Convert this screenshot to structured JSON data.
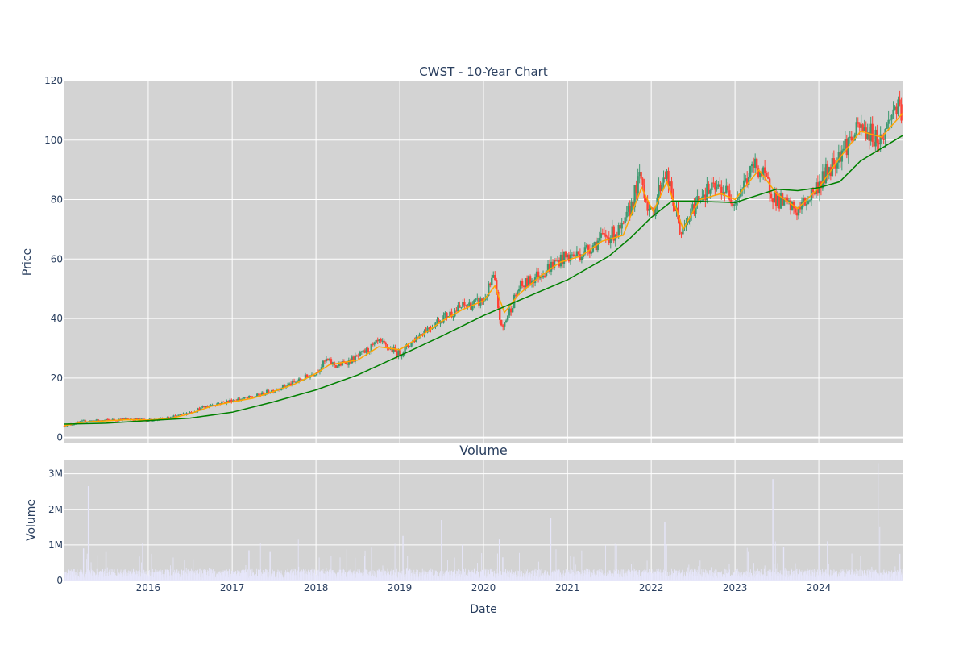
{
  "colors": {
    "plot_bg": "#d3d3d3",
    "paper_bg": "#ffffff",
    "grid": "#ffffff",
    "text": "#2a3f5f",
    "candle_up": "#3d9970",
    "candle_down": "#ff4136",
    "ma_short": "#ffa500",
    "ma_long": "#008000",
    "volume": "#e6e6fa"
  },
  "chart_data": [
    {
      "type": "candlestick",
      "title": "CWST - 10-Year Chart",
      "xlabel": "",
      "ylabel": "Price",
      "xlim": [
        "2015-01-01",
        "2024-12-31"
      ],
      "ylim": [
        -2,
        120
      ],
      "yticks": [
        0,
        20,
        40,
        60,
        80,
        100,
        120
      ],
      "xticks": [
        "2016",
        "2017",
        "2018",
        "2019",
        "2020",
        "2021",
        "2022",
        "2023",
        "2024"
      ],
      "grid": true,
      "series": [
        {
          "kind": "candles",
          "close_approx": [
            [
              "2015-01-01",
              4.0
            ],
            [
              "2015-04-01",
              5.5
            ],
            [
              "2015-07-01",
              5.8
            ],
            [
              "2015-10-01",
              6.2
            ],
            [
              "2016-01-01",
              5.8
            ],
            [
              "2016-04-01",
              6.5
            ],
            [
              "2016-07-01",
              8.5
            ],
            [
              "2016-10-01",
              11.0
            ],
            [
              "2017-01-01",
              12.5
            ],
            [
              "2017-04-01",
              13.5
            ],
            [
              "2017-07-01",
              16.0
            ],
            [
              "2017-10-01",
              18.5
            ],
            [
              "2018-01-01",
              22.0
            ],
            [
              "2018-02-15",
              26.0
            ],
            [
              "2018-04-01",
              24.0
            ],
            [
              "2018-07-01",
              27.0
            ],
            [
              "2018-10-01",
              32.0
            ],
            [
              "2019-01-01",
              28.0
            ],
            [
              "2019-04-01",
              35.0
            ],
            [
              "2019-07-01",
              40.0
            ],
            [
              "2019-10-01",
              44.0
            ],
            [
              "2020-01-01",
              46.0
            ],
            [
              "2020-02-15",
              54.0
            ],
            [
              "2020-03-20",
              36.0
            ],
            [
              "2020-06-01",
              50.0
            ],
            [
              "2020-09-01",
              55.0
            ],
            [
              "2020-12-01",
              60.0
            ],
            [
              "2021-03-01",
              62.0
            ],
            [
              "2021-06-01",
              67.0
            ],
            [
              "2021-09-01",
              70.0
            ],
            [
              "2021-11-15",
              88.0
            ],
            [
              "2022-01-01",
              74.0
            ],
            [
              "2022-03-01",
              90.0
            ],
            [
              "2022-05-15",
              68.0
            ],
            [
              "2022-08-01",
              82.0
            ],
            [
              "2022-11-01",
              84.0
            ],
            [
              "2023-01-01",
              80.0
            ],
            [
              "2023-04-01",
              92.0
            ],
            [
              "2023-07-01",
              80.0
            ],
            [
              "2023-10-01",
              76.0
            ],
            [
              "2024-01-01",
              85.0
            ],
            [
              "2024-04-01",
              96.0
            ],
            [
              "2024-07-01",
              104.0
            ],
            [
              "2024-10-01",
              100.0
            ],
            [
              "2024-12-01",
              112.0
            ],
            [
              "2024-12-31",
              106.0
            ]
          ]
        },
        {
          "kind": "line",
          "color_key": "ma_short",
          "values": [
            [
              "2015-01-01",
              4.0
            ],
            [
              "2015-04-01",
              5.2
            ],
            [
              "2015-07-01",
              5.6
            ],
            [
              "2015-10-01",
              6.0
            ],
            [
              "2016-01-01",
              5.9
            ],
            [
              "2016-04-01",
              6.3
            ],
            [
              "2016-07-01",
              8.0
            ],
            [
              "2016-10-01",
              10.5
            ],
            [
              "2017-01-01",
              12.0
            ],
            [
              "2017-04-01",
              13.2
            ],
            [
              "2017-07-01",
              15.5
            ],
            [
              "2017-10-01",
              18.0
            ],
            [
              "2018-01-01",
              21.5
            ],
            [
              "2018-03-01",
              24.5
            ],
            [
              "2018-07-01",
              26.0
            ],
            [
              "2018-10-01",
              30.5
            ],
            [
              "2019-01-01",
              29.5
            ],
            [
              "2019-04-01",
              34.0
            ],
            [
              "2019-07-01",
              39.0
            ],
            [
              "2019-10-01",
              43.0
            ],
            [
              "2020-01-01",
              46.0
            ],
            [
              "2020-02-20",
              51.0
            ],
            [
              "2020-04-01",
              42.0
            ],
            [
              "2020-06-01",
              48.0
            ],
            [
              "2020-09-01",
              54.0
            ],
            [
              "2020-12-01",
              59.0
            ],
            [
              "2021-03-01",
              61.0
            ],
            [
              "2021-06-01",
              66.0
            ],
            [
              "2021-09-01",
              68.0
            ],
            [
              "2021-11-20",
              84.0
            ],
            [
              "2022-01-10",
              76.0
            ],
            [
              "2022-03-10",
              86.0
            ],
            [
              "2022-05-20",
              70.0
            ],
            [
              "2022-08-01",
              80.0
            ],
            [
              "2022-11-01",
              82.0
            ],
            [
              "2023-01-01",
              80.0
            ],
            [
              "2023-04-15",
              90.0
            ],
            [
              "2023-07-01",
              82.0
            ],
            [
              "2023-10-01",
              77.0
            ],
            [
              "2024-01-01",
              84.0
            ],
            [
              "2024-04-01",
              94.0
            ],
            [
              "2024-07-01",
              103.0
            ],
            [
              "2024-10-01",
              101.0
            ],
            [
              "2024-12-31",
              109.0
            ]
          ]
        },
        {
          "kind": "line",
          "color_key": "ma_long",
          "values": [
            [
              "2015-01-01",
              4.5
            ],
            [
              "2015-07-01",
              4.8
            ],
            [
              "2016-01-01",
              5.7
            ],
            [
              "2016-07-01",
              6.5
            ],
            [
              "2017-01-01",
              8.5
            ],
            [
              "2017-07-01",
              12.0
            ],
            [
              "2018-01-01",
              16.0
            ],
            [
              "2018-07-01",
              21.0
            ],
            [
              "2019-01-01",
              27.5
            ],
            [
              "2019-07-01",
              34.0
            ],
            [
              "2020-01-01",
              41.0
            ],
            [
              "2020-07-01",
              47.0
            ],
            [
              "2021-01-01",
              53.0
            ],
            [
              "2021-07-01",
              61.0
            ],
            [
              "2021-10-01",
              67.0
            ],
            [
              "2022-01-01",
              74.0
            ],
            [
              "2022-04-01",
              79.5
            ],
            [
              "2022-07-01",
              79.5
            ],
            [
              "2023-01-01",
              79.0
            ],
            [
              "2023-07-01",
              83.5
            ],
            [
              "2023-10-01",
              83.0
            ],
            [
              "2024-01-01",
              84.0
            ],
            [
              "2024-04-01",
              86.0
            ],
            [
              "2024-07-01",
              93.0
            ],
            [
              "2024-12-31",
              101.5
            ]
          ]
        }
      ]
    },
    {
      "type": "bar",
      "title": "Volume",
      "xlabel": "Date",
      "ylabel": "Volume",
      "xlim": [
        "2015-01-01",
        "2024-12-31"
      ],
      "ylim": [
        0,
        3400000
      ],
      "yticks": [
        0,
        1000000,
        2000000,
        3000000
      ],
      "ytick_labels": [
        "0",
        "1M",
        "2M",
        "3M"
      ],
      "xticks": [
        "2016",
        "2017",
        "2018",
        "2019",
        "2020",
        "2021",
        "2022",
        "2023",
        "2024"
      ],
      "grid": true,
      "typical_volume": 250000,
      "spikes": [
        [
          "2015-04-15",
          2650000
        ],
        [
          "2015-03-25",
          900000
        ],
        [
          "2015-07-01",
          800000
        ],
        [
          "2016-01-15",
          750000
        ],
        [
          "2016-07-15",
          600000
        ],
        [
          "2017-03-15",
          850000
        ],
        [
          "2017-06-15",
          800000
        ],
        [
          "2017-10-15",
          1150000
        ],
        [
          "2018-04-15",
          650000
        ],
        [
          "2019-01-15",
          1250000
        ],
        [
          "2019-07-01",
          1700000
        ],
        [
          "2019-10-01",
          1000000
        ],
        [
          "2020-03-10",
          1150000
        ],
        [
          "2020-03-25",
          650000
        ],
        [
          "2020-10-20",
          1750000
        ],
        [
          "2021-01-15",
          700000
        ],
        [
          "2022-03-01",
          1650000
        ],
        [
          "2022-03-08",
          1000000
        ],
        [
          "2023-03-01",
          800000
        ],
        [
          "2023-06-15",
          2850000
        ],
        [
          "2023-06-25",
          1100000
        ],
        [
          "2023-08-01",
          950000
        ],
        [
          "2024-01-01",
          1000000
        ],
        [
          "2024-07-01",
          700000
        ],
        [
          "2024-09-15",
          3300000
        ],
        [
          "2024-09-22",
          1500000
        ],
        [
          "2024-12-20",
          750000
        ]
      ]
    }
  ]
}
